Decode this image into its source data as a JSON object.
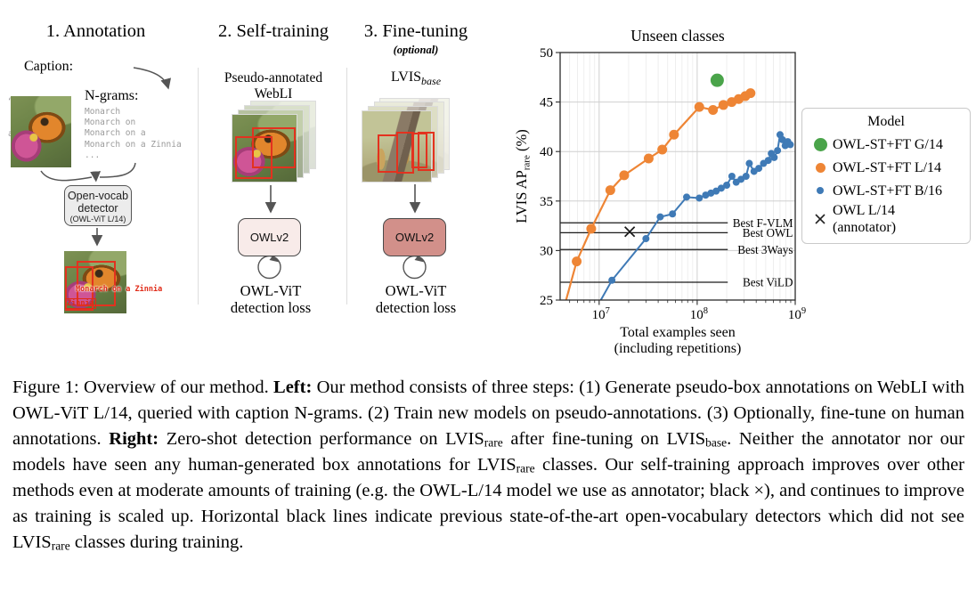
{
  "diagram": {
    "step1": {
      "heading": "1. Annotation",
      "caption_label": "Caption:",
      "caption_lines": [
        "“Monarch on",
        "a Zinnia”"
      ],
      "ngrams_label": "N-grams:",
      "ngrams": [
        "Monarch",
        "Monarch on",
        "Monarch on a",
        "Monarch on a Zinnia",
        "..."
      ],
      "detector_line1": "Open-vocab",
      "detector_line2": "detector",
      "detector_line3": "(OWL-ViT L/14)",
      "bbox_label_1": "Monarch on a Zinnia",
      "bbox_label_2": "Zinnia"
    },
    "step2": {
      "heading": "2. Self-training",
      "data_line1": "Pseudo-annotated",
      "data_line2": "WebLI",
      "model_label": "OWLv2",
      "loss_line1": "OWL-ViT",
      "loss_line2": "detection loss"
    },
    "step3": {
      "heading": "3. Fine-tuning",
      "optional": "(optional)",
      "dataset_main": "LVIS",
      "dataset_sub": "base",
      "model_label": "OWLv2",
      "loss_line1": "OWL-ViT",
      "loss_line2": "detection loss"
    }
  },
  "chart_data": {
    "type": "line",
    "title": "Unseen classes",
    "xlabel_line1": "Total examples seen",
    "xlabel_line2": "(including repetitions)",
    "ylabel": {
      "prefix": "LVIS AP",
      "sub": "rare",
      "suffix": " (%)"
    },
    "x_scale": "log",
    "xlim": [
      4000000,
      1000000000
    ],
    "ylim": [
      25,
      50
    ],
    "yticks": [
      25,
      30,
      35,
      40,
      45,
      50
    ],
    "xticks": [
      {
        "value": 10000000,
        "base": "10",
        "exp": "7"
      },
      {
        "value": 100000000,
        "base": "10",
        "exp": "8"
      },
      {
        "value": 1000000000,
        "base": "10",
        "exp": "9"
      }
    ],
    "grid": true,
    "series": [
      {
        "name": "OWL-ST+FT G/14",
        "color": "#4aa44a",
        "marker": "circle",
        "marker_px": 15,
        "points": [
          [
            160000000,
            47.2
          ]
        ]
      },
      {
        "name": "OWL-ST+FT L/14",
        "color": "#ee8535",
        "marker": "circle",
        "marker_px": 11,
        "lw": 2.2,
        "line_start": [
          4600000,
          25
        ],
        "points": [
          [
            5900000,
            28.9
          ],
          [
            8300000,
            32.2
          ],
          [
            13000000,
            36.1
          ],
          [
            18000000,
            37.6
          ],
          [
            32000000,
            39.3
          ],
          [
            44000000,
            40.2
          ],
          [
            58000000,
            41.7
          ],
          [
            105000000,
            44.5
          ],
          [
            145000000,
            44.2
          ],
          [
            185000000,
            44.7
          ],
          [
            225000000,
            45.0
          ],
          [
            265000000,
            45.3
          ],
          [
            310000000,
            45.6
          ],
          [
            350000000,
            45.9
          ]
        ]
      },
      {
        "name": "OWL-ST+FT B/16",
        "color": "#3f7ab6",
        "marker": "circle",
        "marker_px": 8,
        "lw": 2,
        "line_start": [
          10400000,
          25
        ],
        "points": [
          [
            13500000,
            27.0
          ],
          [
            30000000,
            31.2
          ],
          [
            42000000,
            33.4
          ],
          [
            56000000,
            33.7
          ],
          [
            78000000,
            35.4
          ],
          [
            105000000,
            35.3
          ],
          [
            122000000,
            35.6
          ],
          [
            138000000,
            35.8
          ],
          [
            156000000,
            36.0
          ],
          [
            176000000,
            36.3
          ],
          [
            200000000,
            36.6
          ],
          [
            226000000,
            37.5
          ],
          [
            250000000,
            36.9
          ],
          [
            280000000,
            37.2
          ],
          [
            315000000,
            37.5
          ],
          [
            340000000,
            38.8
          ],
          [
            380000000,
            38.0
          ],
          [
            425000000,
            38.3
          ],
          [
            475000000,
            38.8
          ],
          [
            530000000,
            39.1
          ],
          [
            570000000,
            39.8
          ],
          [
            610000000,
            39.4
          ],
          [
            660000000,
            40.1
          ],
          [
            700000000,
            41.7
          ],
          [
            740000000,
            41.2
          ],
          [
            790000000,
            40.6
          ],
          [
            840000000,
            41.0
          ],
          [
            890000000,
            40.7
          ]
        ]
      },
      {
        "name": "OWL L/14 (annotator)",
        "color": "#1a1a1a",
        "marker": "x",
        "marker_px": 13,
        "points": [
          [
            20500000,
            31.9
          ]
        ]
      }
    ],
    "baselines": [
      {
        "label": "Best F-VLM",
        "value": 32.8
      },
      {
        "label": "Best OWL",
        "value": 31.8
      },
      {
        "label": "Best 3Ways",
        "value": 30.1
      },
      {
        "label": "Best ViLD",
        "value": 26.8
      }
    ],
    "baseline_x_end": 205000000,
    "legend": {
      "title": "Model",
      "entries": [
        {
          "marker": "circle",
          "color": "#4aa44a",
          "size": 15,
          "label": "OWL-ST+FT G/14"
        },
        {
          "marker": "circle",
          "color": "#ee8535",
          "size": 11,
          "label": "OWL-ST+FT L/14"
        },
        {
          "marker": "circle",
          "color": "#3f7ab6",
          "size": 8,
          "label": "OWL-ST+FT B/16"
        },
        {
          "marker": "x",
          "color": "#222222",
          "size": 14,
          "label": "OWL L/14",
          "label2": "(annotator)"
        }
      ]
    }
  },
  "caption": {
    "segments": [
      {
        "t": "Figure 1: Overview of our method. "
      },
      {
        "t": "Left:",
        "b": true
      },
      {
        "t": " Our method consists of three steps: (1) Generate pseudo-box annotations on WebLI with OWL-ViT L/14, queried with caption N-grams. (2) Train new models on pseudo-annotations. (3) Optionally, fine-tune on human annotations. "
      },
      {
        "t": "Right:",
        "b": true
      },
      {
        "t": " Zero-shot detection performance on LVIS"
      },
      {
        "t": "rare",
        "sub": true
      },
      {
        "t": " after fine-tuning on LVIS"
      },
      {
        "t": "base",
        "sub": true
      },
      {
        "t": ". Neither the annotator nor our models have seen any human-generated box annotations for LVIS"
      },
      {
        "t": "rare",
        "sub": true
      },
      {
        "t": " classes. Our self-training approach improves over other methods even at moderate amounts of training (e.g. the OWL-L/14 model we use as annotator; black ×), and continues to improve as training is scaled up. Horizontal black lines indicate previous state-of-the-art open-vocabulary detectors which did not see LVIS"
      },
      {
        "t": "rare",
        "sub": true
      },
      {
        "t": " classes during training."
      }
    ]
  }
}
